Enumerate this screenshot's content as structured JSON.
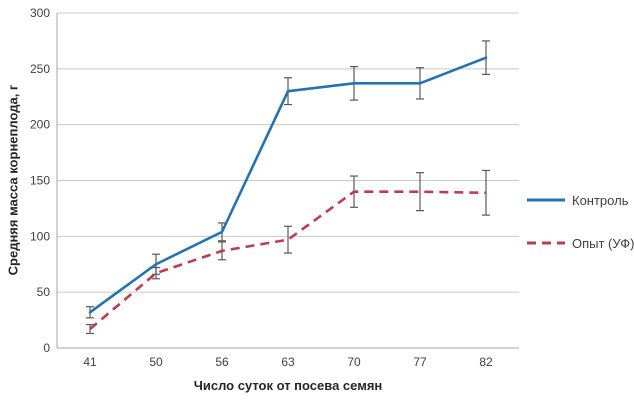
{
  "chart_data": {
    "type": "line",
    "categories": [
      "41",
      "50",
      "56",
      "63",
      "70",
      "77",
      "82"
    ],
    "series": [
      {
        "name": "Контроль",
        "color": "#2373B4",
        "style": "solid",
        "values": [
          32,
          75,
          104,
          230,
          237,
          237,
          260
        ],
        "errors": [
          5,
          9,
          8,
          12,
          15,
          14,
          15
        ]
      },
      {
        "name": "Опыт (УФ)",
        "color": "#BE3C4B",
        "style": "dashed",
        "values": [
          17,
          67,
          87,
          97,
          140,
          140,
          139
        ],
        "errors": [
          4,
          5,
          8,
          12,
          14,
          17,
          20
        ]
      }
    ],
    "title": "",
    "xlabel": "Число суток от посева семян",
    "ylabel": "Средняя масса корнеплода, г",
    "ylim": [
      0,
      300
    ],
    "ytick_step": 50,
    "grid": true,
    "legend_position": "right",
    "error_bar_color": "#595959",
    "grid_color": "#c9c9c9",
    "axis_color": "#a6a6a6"
  }
}
